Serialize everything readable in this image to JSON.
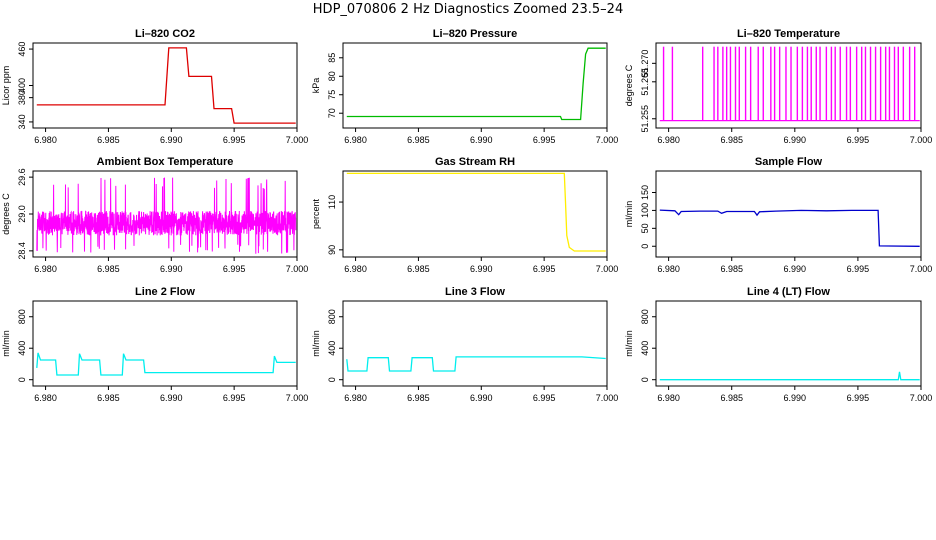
{
  "page_title": "HDP_070806  2 Hz Diagnostics Zoomed 23.5–24",
  "colors": {
    "co2": "#dd0000",
    "pressure": "#00bb00",
    "temperature": "#ff00ff",
    "ambient": "#ff00ff",
    "rh": "#ffee00",
    "sample": "#0000cc",
    "line2": "#00eeee",
    "line3": "#00eeee",
    "line4": "#00eeee"
  },
  "chart_data": [
    {
      "id": "co2",
      "type": "line",
      "title": "Li–820 CO2",
      "ylabel": "Licor ppm",
      "xlim": [
        6.979,
        7.0
      ],
      "ylim": [
        330,
        470
      ],
      "xticks": [
        "6.980",
        "6.985",
        "6.990",
        "6.995",
        "7.000"
      ],
      "yticks": [
        "340",
        "380",
        "400",
        "460"
      ],
      "series": [
        {
          "color_key": "co2",
          "x": [
            6.9793,
            6.9895,
            6.9898,
            6.9912,
            6.9914,
            6.9932,
            6.9934,
            6.9948,
            6.995,
            6.9999
          ],
          "y": [
            368,
            368,
            462,
            462,
            415,
            415,
            362,
            362,
            338,
            338
          ]
        }
      ]
    },
    {
      "id": "pressure",
      "type": "line",
      "title": "Li–820 Pressure",
      "ylabel": "kPa",
      "xlim": [
        6.979,
        7.0
      ],
      "ylim": [
        66,
        89
      ],
      "xticks": [
        "6.980",
        "6.985",
        "6.990",
        "6.995",
        "7.000"
      ],
      "yticks": [
        "70",
        "75",
        "80",
        "85"
      ],
      "series": [
        {
          "color_key": "pressure",
          "x": [
            6.9793,
            6.9963,
            6.9964,
            6.9979,
            6.9981,
            6.9983,
            6.9985,
            6.9999
          ],
          "y": [
            69.1,
            69.1,
            68.3,
            68.3,
            78,
            86,
            87.6,
            87.6
          ]
        }
      ]
    },
    {
      "id": "temperature",
      "type": "line",
      "title": "Li–820 Temperature",
      "ylabel": "degrees C",
      "xlim": [
        6.979,
        7.0
      ],
      "ylim": [
        51.2525,
        51.2755
      ],
      "xticks": [
        "6.980",
        "6.985",
        "6.990",
        "6.995",
        "7.000"
      ],
      "yticks": [
        "51.255",
        "51.265",
        "51.270"
      ],
      "toggle": {
        "low": 51.2545,
        "high": 51.2745,
        "spikes": [
          6.9796,
          6.9803,
          6.9827,
          6.9836,
          6.9839,
          6.9843,
          6.9846,
          6.9849,
          6.9853,
          6.9856,
          6.9861,
          6.9865,
          6.9871,
          6.9875,
          6.9881,
          6.9884,
          6.9888,
          6.9893,
          6.9897,
          6.9902,
          6.9906,
          6.991,
          6.9913,
          6.9917,
          6.992,
          6.9925,
          6.9929,
          6.9932,
          6.9936,
          6.9941,
          6.9944,
          6.9949,
          6.9953,
          6.9956,
          6.996,
          6.9964,
          6.9968,
          6.9972,
          6.9975,
          6.9979,
          6.9982,
          6.9986,
          6.9991,
          6.9995
        ]
      },
      "series": [
        {
          "color_key": "temperature"
        }
      ]
    },
    {
      "id": "ambient",
      "type": "line",
      "title": "Ambient Box Temperature",
      "ylabel": "degrees C",
      "xlim": [
        6.979,
        7.0
      ],
      "ylim": [
        28.3,
        29.7
      ],
      "xticks": [
        "6.980",
        "6.985",
        "6.990",
        "6.995",
        "7.000"
      ],
      "yticks": [
        "28.4",
        "29.0",
        "29.6"
      ],
      "noise": {
        "center": 28.85,
        "amplitude": 0.2,
        "spike_min": 28.35,
        "spike_max": 29.6,
        "samples": 1400
      },
      "series": [
        {
          "color_key": "ambient"
        }
      ]
    },
    {
      "id": "rh",
      "type": "line",
      "title": "Gas Stream RH",
      "ylabel": "percent",
      "xlim": [
        6.979,
        7.0
      ],
      "ylim": [
        87,
        123
      ],
      "xticks": [
        "6.980",
        "6.985",
        "6.990",
        "6.995",
        "7.000"
      ],
      "yticks": [
        "90",
        "110"
      ],
      "series": [
        {
          "color_key": "rh",
          "x": [
            6.9793,
            6.9966,
            6.9967,
            6.9968,
            6.997,
            6.9974,
            6.9999
          ],
          "y": [
            122,
            122,
            110,
            96,
            91,
            89.5,
            89.5
          ]
        }
      ]
    },
    {
      "id": "sample",
      "type": "line",
      "title": "Sample Flow",
      "ylabel": "ml/min",
      "xlim": [
        6.979,
        7.0
      ],
      "ylim": [
        -30,
        210
      ],
      "xticks": [
        "6.980",
        "6.985",
        "6.990",
        "6.995",
        "7.000"
      ],
      "yticks": [
        "0",
        "50",
        "100",
        "150"
      ],
      "series": [
        {
          "color_key": "sample",
          "x": [
            6.9793,
            6.9805,
            6.9808,
            6.981,
            6.9825,
            6.9839,
            6.9842,
            6.9846,
            6.9868,
            6.987,
            6.9872,
            6.9885,
            6.9905,
            6.9925,
            6.9945,
            6.9966,
            6.9967,
            6.9999
          ],
          "y": [
            101,
            99,
            88,
            97,
            98,
            98,
            92,
            97,
            97,
            87,
            96,
            98,
            100,
            99,
            100,
            100,
            1,
            0
          ]
        }
      ]
    },
    {
      "id": "line2",
      "type": "line",
      "title": "Line 2 Flow",
      "ylabel": "ml/min",
      "xlim": [
        6.979,
        7.0
      ],
      "ylim": [
        -80,
        1000
      ],
      "xticks": [
        "6.980",
        "6.985",
        "6.990",
        "6.995",
        "7.000"
      ],
      "yticks": [
        "0",
        "400",
        "800"
      ],
      "series": [
        {
          "color_key": "line2",
          "x": [
            6.9793,
            6.9794,
            6.9796,
            6.9808,
            6.9809,
            6.9826,
            6.9827,
            6.9829,
            6.9843,
            6.9844,
            6.9861,
            6.9862,
            6.9864,
            6.9878,
            6.9879,
            6.9981,
            6.9982,
            6.9984,
            6.9999
          ],
          "y": [
            150,
            340,
            250,
            250,
            60,
            60,
            330,
            250,
            250,
            60,
            60,
            330,
            250,
            250,
            90,
            90,
            300,
            220,
            220
          ]
        }
      ]
    },
    {
      "id": "line3",
      "type": "line",
      "title": "Line 3 Flow",
      "ylabel": "ml/min",
      "xlim": [
        6.979,
        7.0
      ],
      "ylim": [
        -80,
        1000
      ],
      "xticks": [
        "6.980",
        "6.985",
        "6.990",
        "6.995",
        "7.000"
      ],
      "yticks": [
        "0",
        "400",
        "800"
      ],
      "series": [
        {
          "color_key": "line3",
          "x": [
            6.9793,
            6.9794,
            6.9795,
            6.9809,
            6.981,
            6.9826,
            6.9827,
            6.9844,
            6.9845,
            6.9861,
            6.9862,
            6.9879,
            6.988,
            6.998,
            6.9999
          ],
          "y": [
            260,
            110,
            110,
            110,
            280,
            280,
            110,
            110,
            280,
            280,
            110,
            110,
            290,
            290,
            270
          ]
        }
      ]
    },
    {
      "id": "line4",
      "type": "line",
      "title": "Line 4 (LT) Flow",
      "ylabel": "ml/min",
      "xlim": [
        6.979,
        7.0
      ],
      "ylim": [
        -80,
        1000
      ],
      "xticks": [
        "6.980",
        "6.985",
        "6.990",
        "6.995",
        "7.000"
      ],
      "yticks": [
        "0",
        "400",
        "800"
      ],
      "series": [
        {
          "color_key": "line4",
          "x": [
            6.9793,
            6.9982,
            6.9983,
            6.9984,
            6.9999
          ],
          "y": [
            0,
            0,
            100,
            0,
            0
          ]
        }
      ]
    }
  ]
}
